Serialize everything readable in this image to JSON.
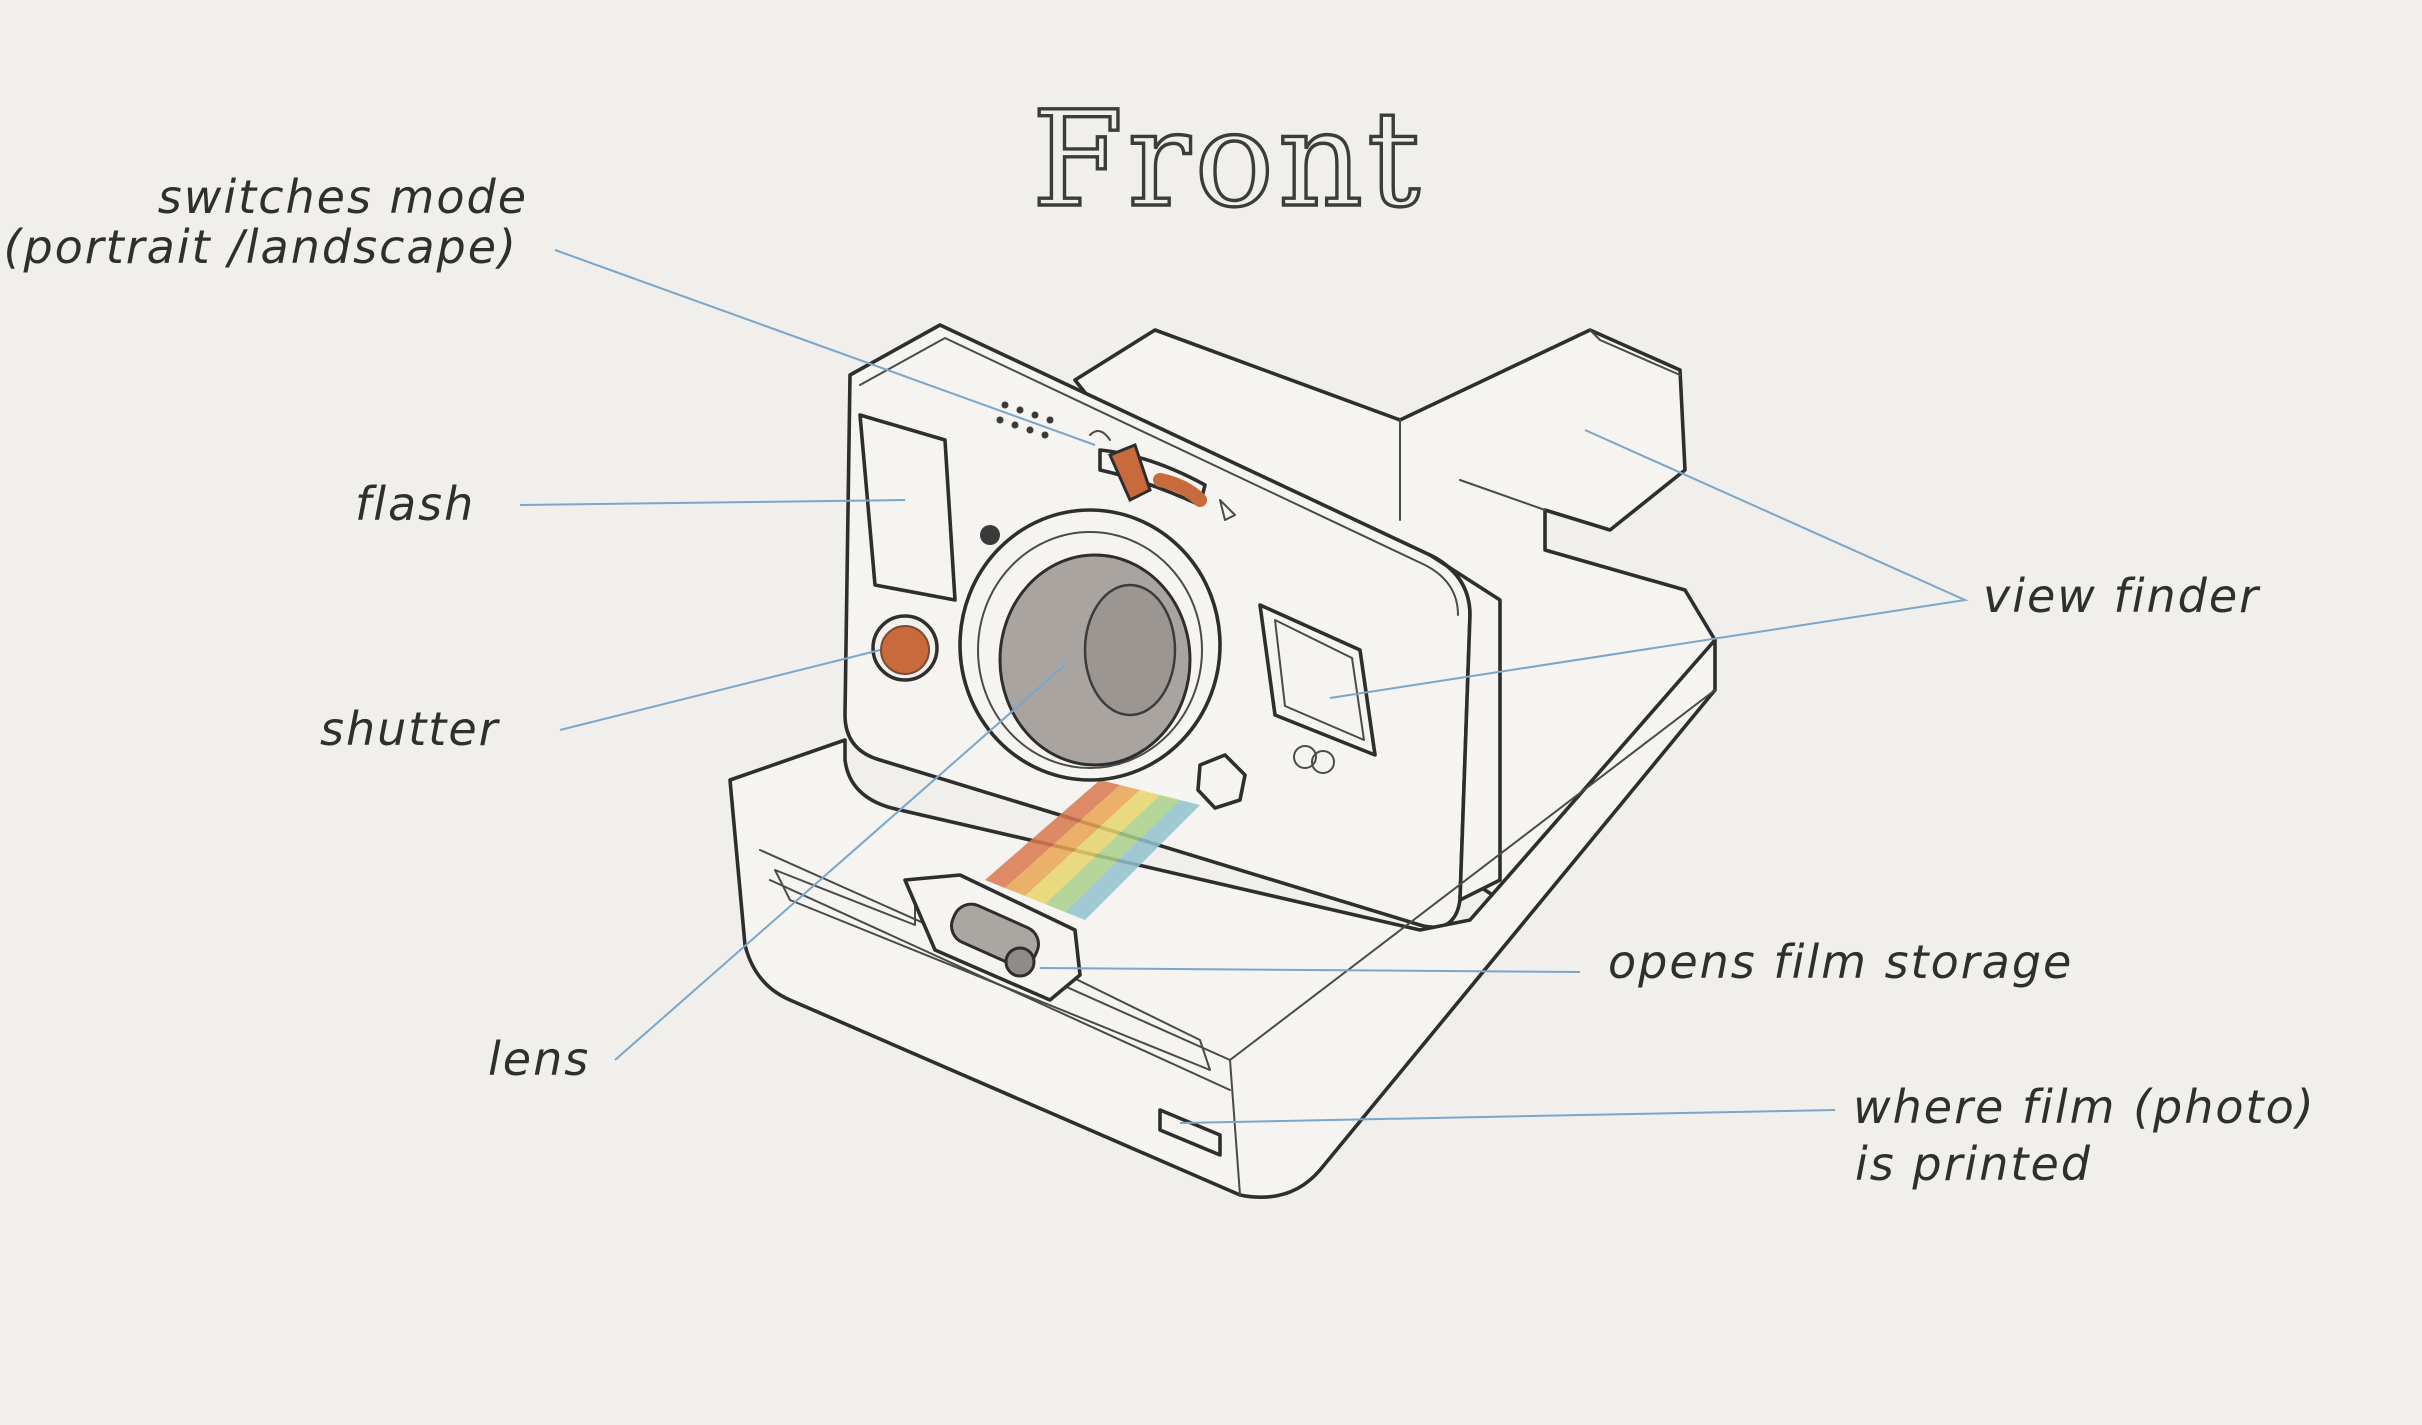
{
  "title": "Front",
  "labels": {
    "mode_switch": [
      "switches mode",
      "(portrait /landscape)"
    ],
    "flash": "flash",
    "shutter": "shutter",
    "lens": "lens",
    "view_finder": "view finder",
    "film_storage": "opens film storage",
    "film_output": [
      "where film (photo)",
      "is printed"
    ]
  },
  "colors": {
    "background": "#f1efeb",
    "ink": "#2e2e2e",
    "leader_line": "#7aa6c9",
    "accent_orange": "#c96a3c",
    "lens_gray": "#a9a4a0",
    "stripe_red": "#d9774e",
    "stripe_orange": "#e9a553",
    "stripe_yellow": "#e6d56b",
    "stripe_green": "#a9cf8a",
    "stripe_blue": "#8fc2cf"
  }
}
